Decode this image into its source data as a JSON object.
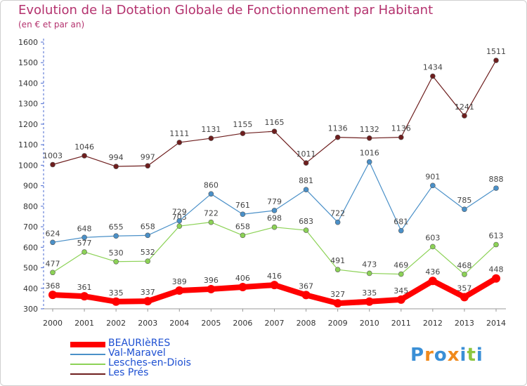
{
  "chart_data": {
    "type": "line",
    "title": "Evolution de la Dotation Globale de Fonctionnement par Habitant",
    "subtitle": "(en € et par an)",
    "x": [
      "2000",
      "2001",
      "2002",
      "2003",
      "2004",
      "2005",
      "2006",
      "2007",
      "2008",
      "2009",
      "2010",
      "2011",
      "2012",
      "2013",
      "2014"
    ],
    "ylim": [
      300,
      1600
    ],
    "yticks": [
      300,
      400,
      500,
      600,
      700,
      800,
      900,
      1000,
      1100,
      1200,
      1300,
      1400,
      1500,
      1600
    ],
    "grid": false,
    "legend_position": "bottom-left",
    "series": [
      {
        "name": "BEAURIèRES",
        "color": "#ff0000",
        "values": [
          368,
          361,
          335,
          337,
          389,
          396,
          406,
          416,
          367,
          327,
          335,
          345,
          436,
          357,
          448
        ]
      },
      {
        "name": "Val-Maravel",
        "color": "#4a90c8",
        "values": [
          624,
          648,
          655,
          658,
          729,
          860,
          761,
          779,
          881,
          722,
          1016,
          681,
          901,
          785,
          888
        ]
      },
      {
        "name": "Lesches-en-Diois",
        "color": "#8cd256",
        "values": [
          477,
          577,
          530,
          532,
          703,
          722,
          658,
          698,
          683,
          491,
          473,
          469,
          603,
          468,
          613
        ]
      },
      {
        "name": "Les Prés",
        "color": "#6e1e1e",
        "values": [
          1003,
          1046,
          994,
          997,
          1111,
          1131,
          1155,
          1165,
          1011,
          1136,
          1132,
          1136,
          1434,
          1241,
          1511
        ]
      }
    ]
  },
  "logo": {
    "text": "Proxiti"
  }
}
